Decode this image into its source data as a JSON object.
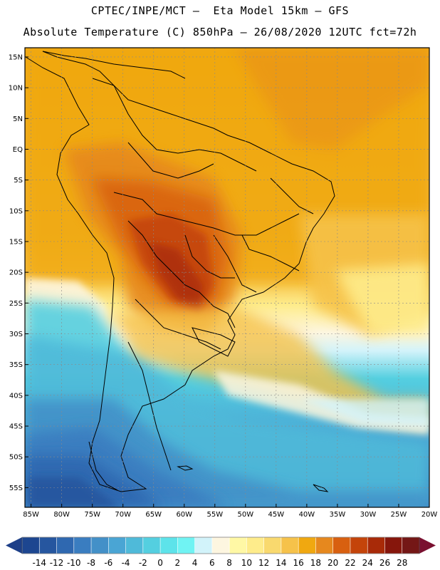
{
  "header": {
    "line1": "CPTEC/INPE/MCT –  Eta Model 15km – GFS",
    "line2": "Absolute Temperature (C) 850hPa – 26/08/2020 12UTC fct=72h"
  },
  "axes": {
    "lat_labels": [
      "15N",
      "10N",
      "5N",
      "EQ",
      "5S",
      "10S",
      "15S",
      "20S",
      "25S",
      "30S",
      "35S",
      "40S",
      "45S",
      "50S",
      "55S"
    ],
    "lon_labels": [
      "85W",
      "80W",
      "75W",
      "70W",
      "65W",
      "60W",
      "55W",
      "50W",
      "45W",
      "40W",
      "35W",
      "30W",
      "25W",
      "20W"
    ],
    "lat_values": [
      15,
      10,
      5,
      0,
      -5,
      -10,
      -15,
      -20,
      -25,
      -30,
      -35,
      -40,
      -45,
      -50,
      -55
    ],
    "lon_values": [
      -85,
      -80,
      -75,
      -70,
      -65,
      -60,
      -55,
      -50,
      -45,
      -40,
      -35,
      -30,
      -25,
      -20
    ],
    "lat_range": [
      -58.2,
      16.5
    ],
    "lon_range": [
      -86.0,
      -20.0
    ]
  },
  "colorbar": {
    "labels": [
      "-14",
      "-12",
      "-10",
      "-8",
      "-6",
      "-4",
      "-2",
      "0",
      "2",
      "4",
      "6",
      "8",
      "10",
      "12",
      "14",
      "16",
      "18",
      "20",
      "22",
      "24",
      "26",
      "28"
    ],
    "values": [
      -14,
      -12,
      -10,
      -8,
      -6,
      -4,
      -2,
      0,
      2,
      4,
      6,
      8,
      10,
      12,
      14,
      16,
      18,
      20,
      22,
      24,
      26,
      28
    ],
    "colors": [
      "#1d4690",
      "#26569f",
      "#2f68b0",
      "#3a7dc0",
      "#4390c8",
      "#4aa5d4",
      "#4fbad9",
      "#54cfe0",
      "#5de3ea",
      "#70f3f3",
      "#d2f3fa",
      "#fdf6e0",
      "#fff8a5",
      "#feec8b",
      "#f9d96e",
      "#f6c24a",
      "#f0a810",
      "#e6881e",
      "#d86010",
      "#c4440a",
      "#a82a08",
      "#86160c",
      "#741716"
    ],
    "low_color": "#1d3f88",
    "high_color": "#7a1030"
  }
}
